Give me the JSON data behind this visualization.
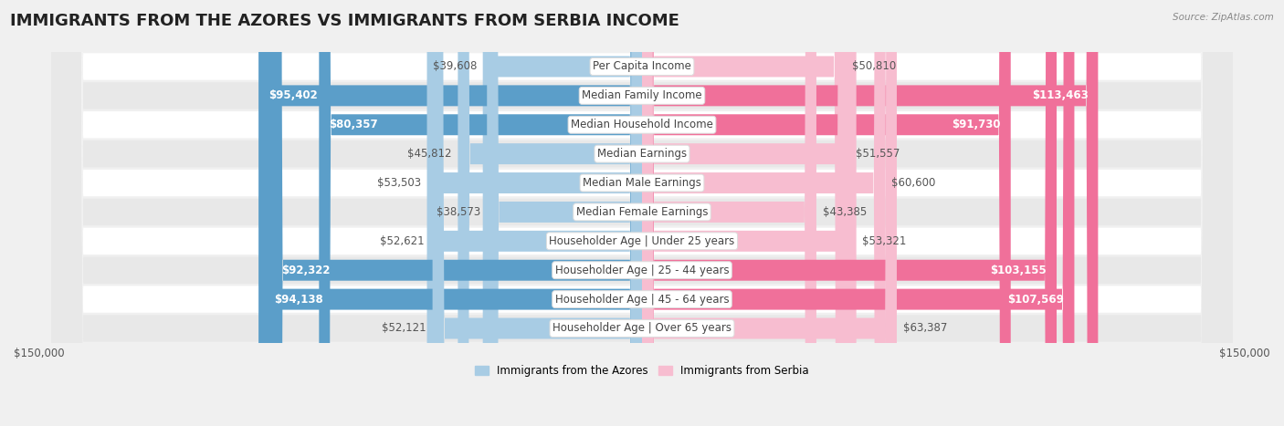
{
  "title": "IMMIGRANTS FROM THE AZORES VS IMMIGRANTS FROM SERBIA INCOME",
  "source": "Source: ZipAtlas.com",
  "categories": [
    "Per Capita Income",
    "Median Family Income",
    "Median Household Income",
    "Median Earnings",
    "Median Male Earnings",
    "Median Female Earnings",
    "Householder Age | Under 25 years",
    "Householder Age | 25 - 44 years",
    "Householder Age | 45 - 64 years",
    "Householder Age | Over 65 years"
  ],
  "azores_values": [
    39608,
    95402,
    80357,
    45812,
    53503,
    38573,
    52621,
    92322,
    94138,
    52121
  ],
  "serbia_values": [
    50810,
    113463,
    91730,
    51557,
    60600,
    43385,
    53321,
    103155,
    107569,
    63387
  ],
  "azores_labels": [
    "$39,608",
    "$95,402",
    "$80,357",
    "$45,812",
    "$53,503",
    "$38,573",
    "$52,621",
    "$92,322",
    "$94,138",
    "$52,121"
  ],
  "serbia_labels": [
    "$50,810",
    "$113,463",
    "$91,730",
    "$51,557",
    "$60,600",
    "$43,385",
    "$53,321",
    "$103,155",
    "$107,569",
    "$63,387"
  ],
  "azores_color_light": "#a8cce4",
  "azores_color_dark": "#5b9ec9",
  "serbia_color_light": "#f7bdd0",
  "serbia_color_dark": "#f0709a",
  "max_value": 150000,
  "bar_height": 0.72,
  "legend_azores": "Immigrants from the Azores",
  "legend_serbia": "Immigrants from Serbia",
  "bg_color": "#f0f0f0",
  "row_bg_light": "#ffffff",
  "row_bg_dark": "#e8e8e8",
  "title_fontsize": 13,
  "label_fontsize": 8.5,
  "tick_fontsize": 8.5,
  "threshold": 65000
}
